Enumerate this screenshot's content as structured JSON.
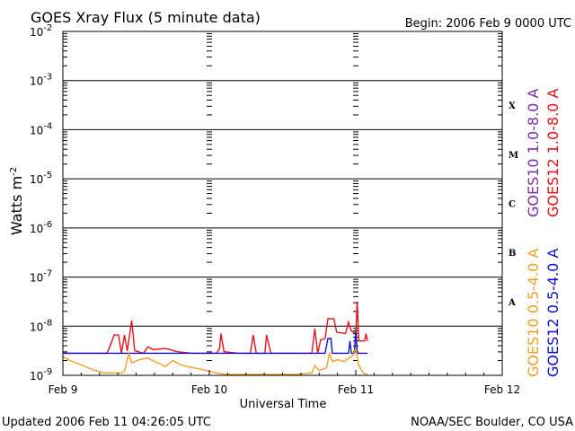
{
  "header": {
    "title": "GOES Xray Flux (5 minute data)",
    "begin": "Begin:  2006 Feb 9 0000 UTC"
  },
  "footer": {
    "updated": "Updated 2006 Feb 11 04:26:05 UTC",
    "credit": "NOAA/SEC Boulder, CO USA"
  },
  "chart_data": {
    "type": "line",
    "ylabel_main": "Watts m",
    "ylabel_exp": "-2",
    "xlabel": "Universal Time",
    "yscale": "log",
    "ylim": [
      1e-09,
      0.01
    ],
    "y_ticks": [
      {
        "exp": -9,
        "base": "10",
        "power": "-9"
      },
      {
        "exp": -8,
        "base": "10",
        "power": "-8"
      },
      {
        "exp": -7,
        "base": "10",
        "power": "-7"
      },
      {
        "exp": -6,
        "base": "10",
        "power": "-6"
      },
      {
        "exp": -5,
        "base": "10",
        "power": "-5"
      },
      {
        "exp": -4,
        "base": "10",
        "power": "-4"
      },
      {
        "exp": -3,
        "base": "10",
        "power": "-3"
      },
      {
        "exp": -2,
        "base": "10",
        "power": "-2"
      }
    ],
    "xlim": [
      0,
      3
    ],
    "x_ticks": [
      {
        "day": 0,
        "label": "Feb 9"
      },
      {
        "day": 1,
        "label": "Feb 10"
      },
      {
        "day": 2,
        "label": "Feb 11"
      },
      {
        "day": 3,
        "label": "Feb 12"
      }
    ],
    "flare_classes": [
      {
        "label": "A",
        "exp": -7.5
      },
      {
        "label": "B",
        "exp": -6.5
      },
      {
        "label": "C",
        "exp": -5.5
      },
      {
        "label": "M",
        "exp": -4.5
      },
      {
        "label": "X",
        "exp": -3.5
      }
    ],
    "legend_right": [
      {
        "label": "GOES10 1.0-8.0 A",
        "color": "#7a2fb0"
      },
      {
        "label": "GOES12 1.0-8.0 A",
        "color": "#e8101a"
      }
    ],
    "legend_left": [
      {
        "label": "GOES10 0.5-4.0 A",
        "color": "#f0a020"
      },
      {
        "label": "GOES12 0.5-4.0 A",
        "color": "#1010d0"
      }
    ],
    "series": [
      {
        "name": "GOES12 1.0-8.0 A",
        "color": "#e8101a",
        "points": [
          [
            0.0,
            -8.55
          ],
          [
            0.3,
            -8.55
          ],
          [
            0.32,
            -8.42
          ],
          [
            0.35,
            -8.18
          ],
          [
            0.38,
            -8.18
          ],
          [
            0.4,
            -8.55
          ],
          [
            0.42,
            -8.18
          ],
          [
            0.44,
            -8.5
          ],
          [
            0.47,
            -7.88
          ],
          [
            0.49,
            -8.5
          ],
          [
            0.55,
            -8.55
          ],
          [
            0.58,
            -8.42
          ],
          [
            0.62,
            -8.48
          ],
          [
            0.7,
            -8.45
          ],
          [
            0.78,
            -8.52
          ],
          [
            0.88,
            -8.55
          ],
          [
            0.95,
            -8.55
          ],
          [
            1.0,
            -8.55
          ],
          [
            1.05,
            -8.55
          ],
          [
            1.07,
            -8.45
          ],
          [
            1.08,
            -8.15
          ],
          [
            1.1,
            -8.52
          ],
          [
            1.2,
            -8.55
          ],
          [
            1.28,
            -8.55
          ],
          [
            1.3,
            -8.18
          ],
          [
            1.32,
            -8.55
          ],
          [
            1.38,
            -8.55
          ],
          [
            1.39,
            -8.18
          ],
          [
            1.42,
            -8.55
          ],
          [
            1.55,
            -8.55
          ],
          [
            1.7,
            -8.55
          ],
          [
            1.72,
            -8.05
          ],
          [
            1.74,
            -8.55
          ],
          [
            1.76,
            -8.28
          ],
          [
            1.79,
            -8.25
          ],
          [
            1.81,
            -7.85
          ],
          [
            1.85,
            -7.85
          ],
          [
            1.87,
            -8.12
          ],
          [
            1.93,
            -8.15
          ],
          [
            1.95,
            -7.92
          ],
          [
            1.97,
            -8.1
          ],
          [
            2.0,
            -8.15
          ],
          [
            2.01,
            -7.5
          ],
          [
            2.02,
            -8.3
          ],
          [
            2.04,
            -8.3
          ],
          [
            2.06,
            -8.3
          ],
          [
            2.07,
            -8.15
          ],
          [
            2.08,
            -8.3
          ]
        ]
      },
      {
        "name": "GOES12 0.5-4.0 A",
        "color": "#1010d0",
        "points": [
          [
            0.0,
            -8.55
          ],
          [
            0.5,
            -8.55
          ],
          [
            1.0,
            -8.55
          ],
          [
            1.5,
            -8.55
          ],
          [
            1.79,
            -8.55
          ],
          [
            1.81,
            -8.25
          ],
          [
            1.83,
            -8.25
          ],
          [
            1.84,
            -8.55
          ],
          [
            1.95,
            -8.55
          ],
          [
            1.96,
            -8.3
          ],
          [
            1.97,
            -8.55
          ],
          [
            1.99,
            -8.55
          ],
          [
            2.0,
            -8.1
          ],
          [
            2.01,
            -8.55
          ],
          [
            2.04,
            -8.55
          ],
          [
            2.06,
            -8.55
          ],
          [
            2.08,
            -8.55
          ]
        ]
      },
      {
        "name": "GOES10 0.5-4.0 A",
        "color": "#f0a020",
        "points": [
          [
            0.0,
            -8.62
          ],
          [
            0.05,
            -8.7
          ],
          [
            0.12,
            -8.78
          ],
          [
            0.2,
            -8.88
          ],
          [
            0.28,
            -8.95
          ],
          [
            0.32,
            -8.95
          ],
          [
            0.4,
            -8.95
          ],
          [
            0.42,
            -8.92
          ],
          [
            0.45,
            -8.55
          ],
          [
            0.47,
            -8.75
          ],
          [
            0.52,
            -8.68
          ],
          [
            0.58,
            -8.65
          ],
          [
            0.65,
            -8.75
          ],
          [
            0.7,
            -8.82
          ],
          [
            0.75,
            -8.7
          ],
          [
            0.8,
            -8.78
          ],
          [
            0.85,
            -8.82
          ],
          [
            0.9,
            -8.85
          ],
          [
            0.95,
            -8.88
          ],
          [
            1.0,
            -8.92
          ],
          [
            1.05,
            -8.95
          ],
          [
            1.1,
            -8.98
          ],
          [
            1.2,
            -8.98
          ],
          [
            1.3,
            -8.98
          ],
          [
            1.4,
            -8.98
          ],
          [
            1.5,
            -8.98
          ],
          [
            1.6,
            -8.98
          ],
          [
            1.7,
            -8.95
          ],
          [
            1.72,
            -8.8
          ],
          [
            1.75,
            -8.9
          ],
          [
            1.8,
            -8.85
          ],
          [
            1.82,
            -8.55
          ],
          [
            1.84,
            -8.72
          ],
          [
            1.88,
            -8.68
          ],
          [
            1.92,
            -8.72
          ],
          [
            1.95,
            -8.65
          ],
          [
            1.98,
            -8.6
          ],
          [
            2.0,
            -8.45
          ],
          [
            2.02,
            -8.8
          ],
          [
            2.05,
            -8.95
          ],
          [
            2.08,
            -8.98
          ]
        ]
      }
    ]
  }
}
